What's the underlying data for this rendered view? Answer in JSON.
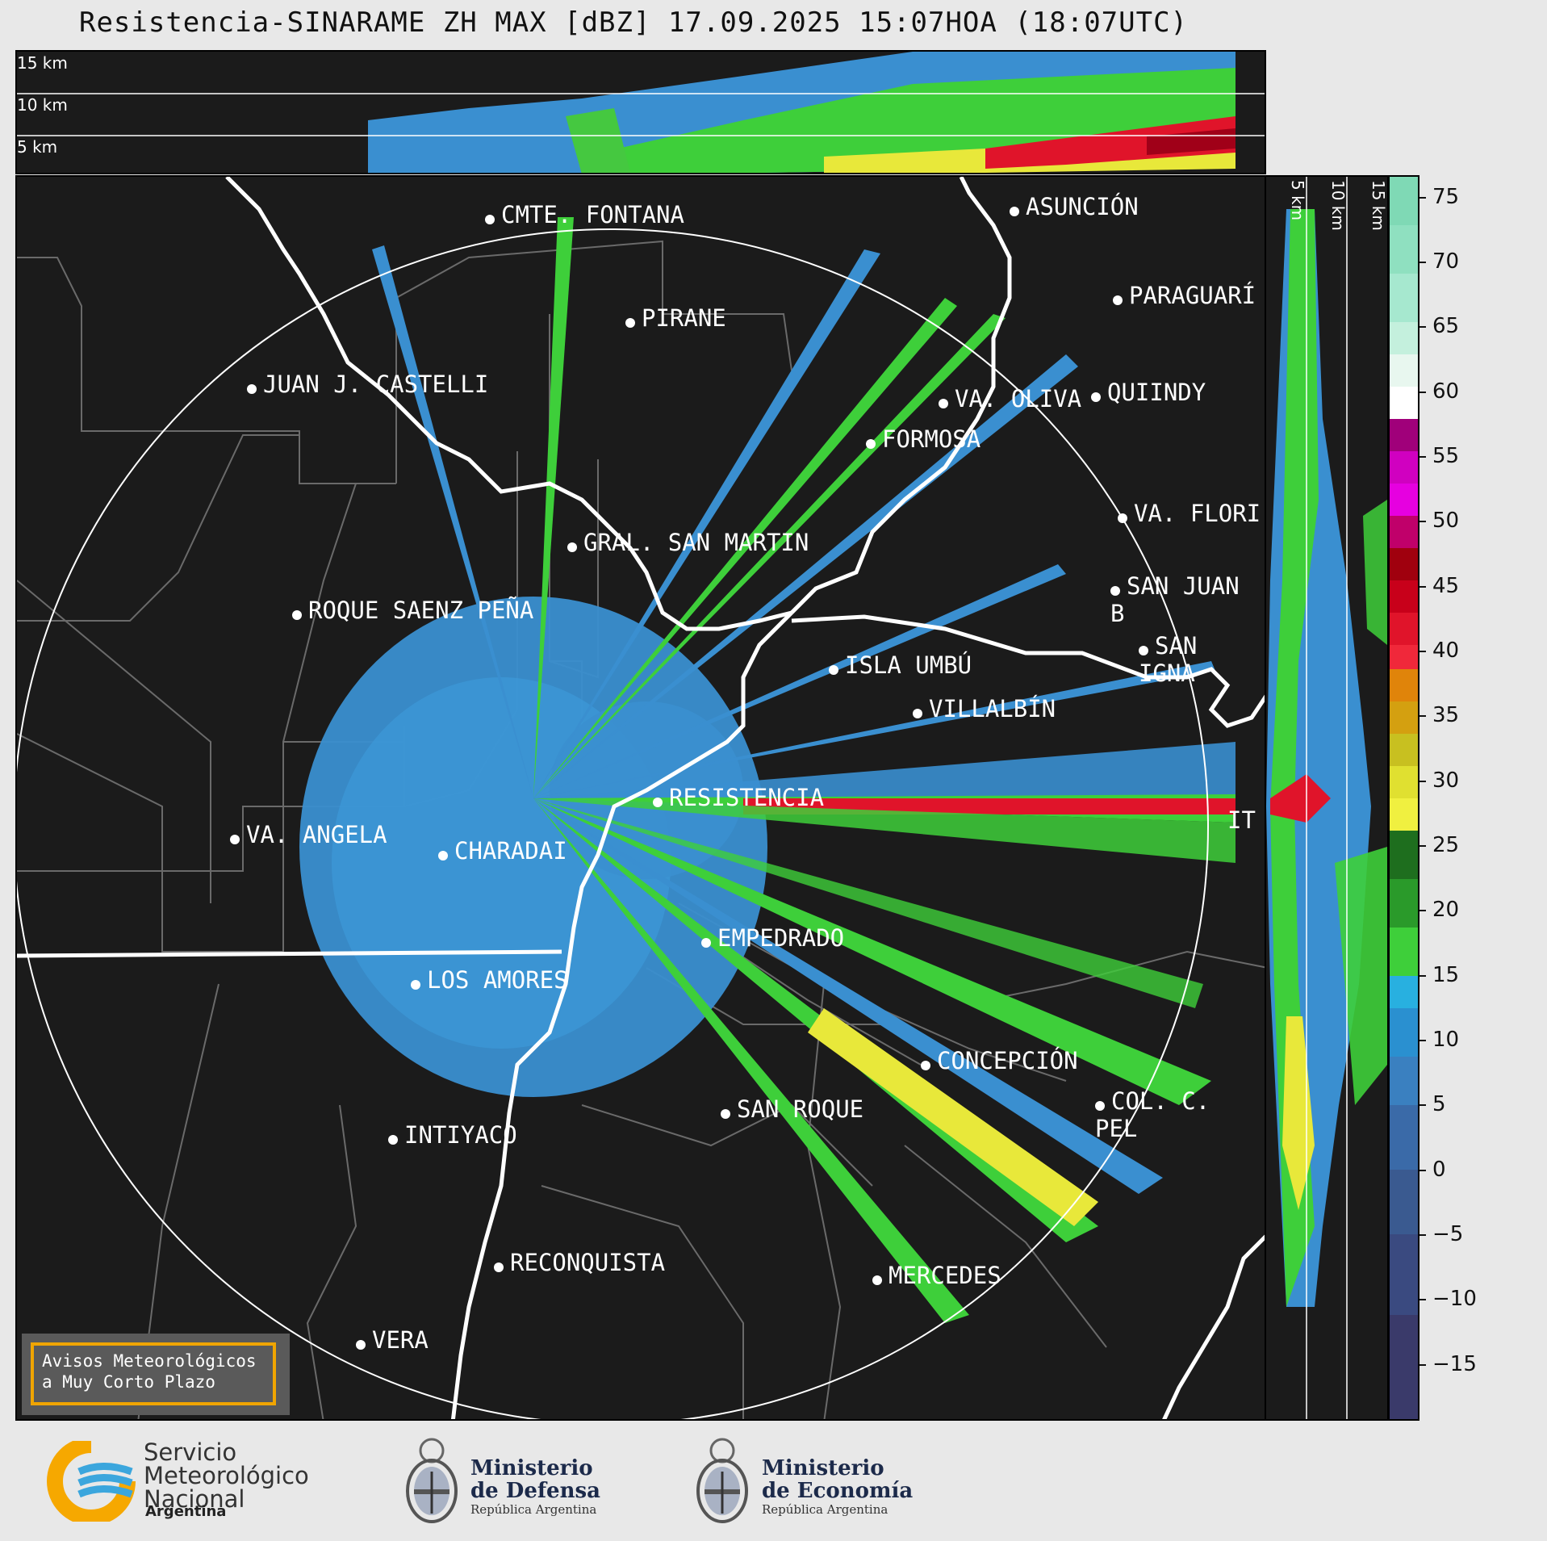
{
  "title": "Resistencia-SINARAME ZH MAX [dBZ] 17.09.2025 15:07HOA (18:07UTC)",
  "top_panel": {
    "altitude_labels": [
      "15 km",
      "10 km",
      "5 km"
    ]
  },
  "side_panel": {
    "altitude_labels": [
      "5 km",
      "10 km",
      "15 km"
    ]
  },
  "map": {
    "places": [
      {
        "name": "CMTE. FONTANA"
      },
      {
        "name": "ASUNCIÓN"
      },
      {
        "name": "PIRANE"
      },
      {
        "name": "PARAGUARÍ"
      },
      {
        "name": "JUAN J. CASTELLI"
      },
      {
        "name": "VA. OLIVA"
      },
      {
        "name": "QUIINDY"
      },
      {
        "name": "FORMOSA"
      },
      {
        "name": "VA. FLORI"
      },
      {
        "name": "GRAL. SAN MARTIN"
      },
      {
        "name": "SAN JUAN B"
      },
      {
        "name": "ROQUE SAENZ PEÑA"
      },
      {
        "name": "SAN IGNA"
      },
      {
        "name": "ISLA UMBÚ"
      },
      {
        "name": "VILLALBÍN"
      },
      {
        "name": "RESISTENCIA"
      },
      {
        "name": "VA. ANGELA"
      },
      {
        "name": "CHARADAI"
      },
      {
        "name": "IT"
      },
      {
        "name": "EMPEDRADO"
      },
      {
        "name": "LOS AMORES"
      },
      {
        "name": "CONCEPCIÓN"
      },
      {
        "name": "SAN ROQUE"
      },
      {
        "name": "COL. C. PEL"
      },
      {
        "name": "INTIYACO"
      },
      {
        "name": "RECONQUISTA"
      },
      {
        "name": "MERCEDES"
      },
      {
        "name": "VERA"
      }
    ]
  },
  "warning_box": {
    "line1": "Avisos Meteorológicos",
    "line2": "a Muy Corto Plazo"
  },
  "colorbar": {
    "unit": "dBZ",
    "ticks": [
      "75",
      "70",
      "65",
      "60",
      "55",
      "50",
      "45",
      "40",
      "35",
      "30",
      "25",
      "20",
      "15",
      "10",
      "5",
      "0",
      "−5",
      "−10",
      "−15"
    ]
  },
  "footer": {
    "smn": {
      "line1": "Servicio",
      "line2": "Meteorológico",
      "line3": "Nacional",
      "country": "Argentina"
    },
    "defensa": {
      "line1": "Ministerio",
      "line2": "de Defensa",
      "sub": "República Argentina"
    },
    "economia": {
      "line1": "Ministerio",
      "line2": "de Economía",
      "sub": "República Argentina"
    }
  },
  "colors": {
    "background": "#1b1b1b",
    "border_line": "#ffffff",
    "radar_low": "#3a8fd0",
    "radar_mid": "#3ecf3a",
    "radar_high": "#e8e83a",
    "radar_max": "#e0142a",
    "warning_border": "#f0a500"
  }
}
